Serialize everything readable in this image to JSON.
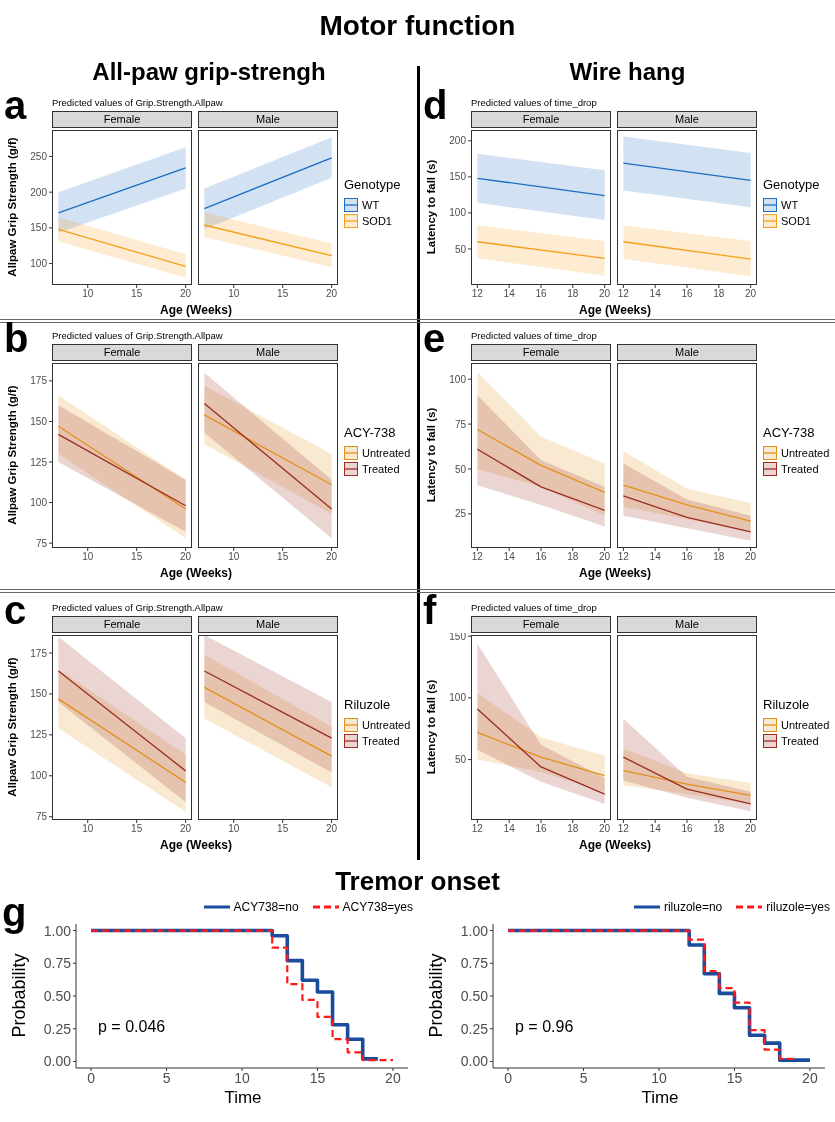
{
  "chart_data": [
    {
      "type": "line",
      "title": "Female",
      "subtitle": "Predicted values of Grip.Strength.Allpaw",
      "xlabel": "Age (Weeks)",
      "ylabel": "Allpaw Grip Strength (g/f)",
      "annotations": [
        "Motor function",
        "All-paw grip-strengh",
        "a"
      ],
      "x": [
        7,
        20
      ],
      "xlim": [
        6.35,
        20.65
      ],
      "xticks": [
        10,
        15,
        20
      ],
      "ylim": [
        70,
        287
      ],
      "yticks": [
        100,
        150,
        200,
        250
      ],
      "series": [
        {
          "color": "#1c6ec0",
          "values": [
            171,
            234
          ],
          "lower": [
            143,
            205
          ],
          "upper": [
            200,
            263
          ]
        },
        {
          "color": "#f5a01c",
          "values": [
            148,
            96
          ],
          "lower": [
            131,
            80
          ],
          "upper": [
            165,
            113
          ]
        }
      ]
    },
    {
      "type": "line",
      "title": "Male",
      "legend": "right",
      "legend_title": "Genotype",
      "tick_labels": "x",
      "x": [
        7,
        20
      ],
      "xlim": [
        6.35,
        20.65
      ],
      "xticks": [
        10,
        15,
        20
      ],
      "ylim": [
        70,
        287
      ],
      "series": [
        {
          "name": "WT",
          "color": "#1c6ec0",
          "values": [
            177,
            248
          ],
          "lower": [
            148,
            220
          ],
          "upper": [
            205,
            277
          ]
        },
        {
          "name": "SOD1",
          "color": "#f5a01c",
          "values": [
            154,
            111
          ],
          "lower": [
            137,
            95
          ],
          "upper": [
            172,
            128
          ]
        }
      ]
    },
    {
      "type": "line",
      "title": "Female",
      "subtitle": "Predicted values of time_drop",
      "xlabel": "Age (Weeks)",
      "ylabel": "Latency to fall (s)",
      "annotations": [
        "Wire hang",
        "d"
      ],
      "x": [
        12,
        20
      ],
      "xlim": [
        11.6,
        20.4
      ],
      "xticks": [
        12,
        14,
        16,
        18,
        20
      ],
      "ylim": [
        0,
        215
      ],
      "yticks": [
        50,
        100,
        150,
        200
      ],
      "series": [
        {
          "color": "#1c6ec0",
          "values": [
            148,
            124
          ],
          "lower": [
            114,
            90
          ],
          "upper": [
            182,
            159
          ]
        },
        {
          "color": "#f5a01c",
          "values": [
            60,
            37
          ],
          "lower": [
            37,
            13
          ],
          "upper": [
            83,
            61
          ]
        }
      ]
    },
    {
      "type": "line",
      "title": "Male",
      "legend": "right",
      "legend_title": "Genotype",
      "tick_labels": "x",
      "x": [
        12,
        20
      ],
      "xlim": [
        11.6,
        20.4
      ],
      "xticks": [
        12,
        14,
        16,
        18,
        20
      ],
      "ylim": [
        0,
        215
      ],
      "series": [
        {
          "name": "WT",
          "color": "#1c6ec0",
          "values": [
            169,
            145
          ],
          "lower": [
            131,
            108
          ],
          "upper": [
            206,
            183
          ]
        },
        {
          "name": "SOD1",
          "color": "#f5a01c",
          "values": [
            60,
            36
          ],
          "lower": [
            36,
            12
          ],
          "upper": [
            83,
            61
          ]
        }
      ]
    },
    {
      "type": "line",
      "title": "Female",
      "subtitle": "Predicted values of Grip.Strength.Allpaw",
      "xlabel": "Age (Weeks)",
      "ylabel": "Allpaw Grip Strength (g/f)",
      "annotations": [
        "b"
      ],
      "x": [
        7,
        20
      ],
      "xlim": [
        6.35,
        20.65
      ],
      "xticks": [
        10,
        15,
        20
      ],
      "ylim": [
        72,
        186
      ],
      "yticks": [
        75,
        100,
        125,
        150,
        175
      ],
      "series": [
        {
          "color": "#e3901a",
          "values": [
            147,
            96
          ],
          "lower": [
            130,
            78
          ],
          "upper": [
            166,
            114
          ]
        },
        {
          "color": "#9a2d22",
          "values": [
            142,
            98
          ],
          "lower": [
            125,
            82
          ],
          "upper": [
            160,
            114
          ]
        }
      ]
    },
    {
      "type": "line",
      "title": "Male",
      "legend": "right",
      "legend_title": "ACY-738",
      "tick_labels": "x",
      "x": [
        7,
        20
      ],
      "xlim": [
        6.35,
        20.65
      ],
      "xticks": [
        10,
        15,
        20
      ],
      "ylim": [
        72,
        186
      ],
      "series": [
        {
          "name": "Untreated",
          "color": "#e3901a",
          "values": [
            154,
            111
          ],
          "lower": [
            136,
            93
          ],
          "upper": [
            172,
            130
          ]
        },
        {
          "name": "Treated",
          "color": "#9a2d22",
          "values": [
            161,
            96
          ],
          "lower": [
            143,
            78
          ],
          "upper": [
            180,
            114
          ]
        }
      ]
    },
    {
      "type": "line",
      "title": "Female",
      "subtitle": "Predicted values of time_drop",
      "xlabel": "Age (Weeks)",
      "ylabel": "Latency to fall (s)",
      "annotations": [
        "e"
      ],
      "x": [
        12,
        16,
        20
      ],
      "xlim": [
        11.6,
        20.4
      ],
      "xticks": [
        12,
        14,
        16,
        18,
        20
      ],
      "ylim": [
        6,
        109
      ],
      "yticks": [
        25,
        50,
        75,
        100
      ],
      "series": [
        {
          "color": "#e3901a",
          "values": [
            72,
            52,
            37
          ],
          "lower": [
            50,
            40,
            24
          ],
          "upper": [
            104,
            68,
            53
          ]
        },
        {
          "color": "#9a2d22",
          "values": [
            61,
            40,
            27
          ],
          "lower": [
            41,
            30,
            18
          ],
          "upper": [
            91,
            55,
            40
          ]
        }
      ]
    },
    {
      "type": "line",
      "title": "Male",
      "legend": "right",
      "legend_title": "ACY-738",
      "tick_labels": "x",
      "x": [
        12,
        16,
        20
      ],
      "xlim": [
        11.6,
        20.4
      ],
      "xticks": [
        12,
        14,
        16,
        18,
        20
      ],
      "ylim": [
        6,
        109
      ],
      "series": [
        {
          "name": "Untreated",
          "color": "#e3901a",
          "values": [
            41,
            30,
            21
          ],
          "lower": [
            29,
            22,
            15
          ],
          "upper": [
            60,
            39,
            31
          ]
        },
        {
          "name": "Treated",
          "color": "#9a2d22",
          "values": [
            35,
            23,
            15
          ],
          "lower": [
            24,
            17,
            10
          ],
          "upper": [
            53,
            33,
            24
          ]
        }
      ]
    },
    {
      "type": "line",
      "title": "Female",
      "subtitle": "Predicted values of Grip.Strength.Allpaw",
      "xlabel": "Age (Weeks)",
      "ylabel": "Allpaw Grip Strength (g/f)",
      "annotations": [
        "c"
      ],
      "x": [
        7,
        20
      ],
      "xlim": [
        6.35,
        20.65
      ],
      "xticks": [
        10,
        15,
        20
      ],
      "ylim": [
        73,
        186
      ],
      "yticks": [
        75,
        100,
        125,
        150,
        175
      ],
      "series": [
        {
          "color": "#e3901a",
          "values": [
            147,
            96
          ],
          "lower": [
            129,
            78
          ],
          "upper": [
            165,
            113
          ]
        },
        {
          "color": "#9a2d22",
          "values": [
            164,
            103
          ],
          "lower": [
            145,
            84
          ],
          "upper": [
            185,
            123
          ]
        }
      ]
    },
    {
      "type": "line",
      "title": "Male",
      "legend": "right",
      "legend_title": "Riluzole",
      "tick_labels": "x",
      "x": [
        7,
        20
      ],
      "xlim": [
        6.35,
        20.65
      ],
      "xticks": [
        10,
        15,
        20
      ],
      "ylim": [
        73,
        186
      ],
      "series": [
        {
          "name": "Untreated",
          "color": "#e3901a",
          "values": [
            154,
            112
          ],
          "lower": [
            135,
            93
          ],
          "upper": [
            174,
            130
          ]
        },
        {
          "name": "Treated",
          "color": "#9a2d22",
          "values": [
            164,
            123
          ],
          "lower": [
            145,
            102
          ],
          "upper": [
            186,
            145
          ]
        }
      ]
    },
    {
      "type": "line",
      "title": "Female",
      "subtitle": "Predicted values of time_drop",
      "xlabel": "Age (Weeks)",
      "ylabel": "Latency to fall (s)",
      "annotations": [
        "f"
      ],
      "x": [
        12,
        16,
        20
      ],
      "xlim": [
        11.6,
        20.4
      ],
      "xticks": [
        12,
        14,
        16,
        18,
        20
      ],
      "ylim": [
        1,
        151
      ],
      "yticks": [
        50,
        100,
        150
      ],
      "series": [
        {
          "color": "#e3901a",
          "values": [
            72,
            52,
            37
          ],
          "lower": [
            50,
            40,
            24
          ],
          "upper": [
            104,
            68,
            53
          ]
        },
        {
          "color": "#9a2d22",
          "values": [
            91,
            44,
            22
          ],
          "lower": [
            58,
            32,
            14
          ],
          "upper": [
            144,
            62,
            35
          ]
        }
      ]
    },
    {
      "type": "line",
      "title": "Male",
      "legend": "right",
      "legend_title": "Riluzole",
      "tick_labels": "x",
      "x": [
        12,
        16,
        20
      ],
      "xlim": [
        11.6,
        20.4
      ],
      "xticks": [
        12,
        14,
        16,
        18,
        20
      ],
      "ylim": [
        1,
        151
      ],
      "series": [
        {
          "name": "Untreated",
          "color": "#e3901a",
          "values": [
            41,
            30,
            21
          ],
          "lower": [
            29,
            22,
            14
          ],
          "upper": [
            59,
            39,
            31
          ]
        },
        {
          "name": "Treated",
          "color": "#9a2d22",
          "values": [
            52,
            26,
            14
          ],
          "lower": [
            33,
            19,
            8
          ],
          "upper": [
            83,
            36,
            24
          ]
        }
      ]
    },
    {
      "type": "step",
      "xlabel": "Time",
      "ylabel": "Probability",
      "legend": "top",
      "annotations": [
        "Tremor onset",
        "g",
        "p = 0.046"
      ],
      "xlim": [
        -1,
        21
      ],
      "xticks": [
        0,
        5,
        10,
        15,
        20
      ],
      "ylim": [
        -0.05,
        1.05
      ],
      "yticks": [
        {
          "value": 0,
          "label": "0.00"
        },
        {
          "value": 0.25,
          "label": "0.25"
        },
        {
          "value": 0.5,
          "label": "0.50"
        },
        {
          "value": 0.75,
          "label": "0.75"
        },
        {
          "value": 1,
          "label": "1.00"
        }
      ],
      "series": [
        {
          "name": "ACY738=no",
          "color": "#1a4b9c",
          "line_style": "solid",
          "x": [
            0,
            12,
            13,
            14,
            15,
            16,
            17,
            18,
            19
          ],
          "values": [
            1,
            0.96,
            0.77,
            0.62,
            0.53,
            0.28,
            0.17,
            0.02,
            0.02
          ]
        },
        {
          "name": "ACY738=yes",
          "color": "#ff1a1a",
          "line_style": "dashed",
          "x": [
            0,
            12,
            13,
            14,
            15,
            16,
            17,
            18,
            20
          ],
          "values": [
            1,
            0.87,
            0.59,
            0.47,
            0.34,
            0.17,
            0.07,
            0.01,
            0.01
          ]
        }
      ]
    },
    {
      "type": "step",
      "xlabel": "Time",
      "ylabel": "Probability",
      "legend": "top",
      "annotations": [
        "p = 0.96"
      ],
      "xlim": [
        -1,
        21
      ],
      "xticks": [
        0,
        5,
        10,
        15,
        20
      ],
      "ylim": [
        -0.05,
        1.05
      ],
      "yticks": [
        {
          "value": 0,
          "label": "0.00"
        },
        {
          "value": 0.25,
          "label": "0.25"
        },
        {
          "value": 0.5,
          "label": "0.50"
        },
        {
          "value": 0.75,
          "label": "0.75"
        },
        {
          "value": 1,
          "label": "1.00"
        }
      ],
      "series": [
        {
          "name": "riluzole=no",
          "color": "#1a4b9c",
          "line_style": "solid",
          "x": [
            0,
            12,
            13,
            14,
            15,
            16,
            17,
            18,
            20
          ],
          "values": [
            1,
            0.89,
            0.67,
            0.52,
            0.41,
            0.2,
            0.14,
            0.01,
            0.01
          ]
        },
        {
          "name": "riluzole=yes",
          "color": "#ff1a1a",
          "line_style": "dashed",
          "x": [
            0,
            12,
            13,
            14,
            15,
            16,
            17,
            18,
            19
          ],
          "values": [
            1,
            0.93,
            0.69,
            0.56,
            0.45,
            0.24,
            0.09,
            0.02,
            0.02
          ]
        }
      ]
    }
  ]
}
